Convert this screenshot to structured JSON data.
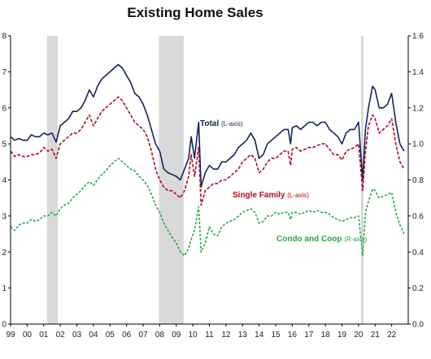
{
  "chart_data": {
    "type": "line",
    "title": "Existing Home Sales",
    "colors": {
      "total": "#14245e",
      "single_family": "#b00b1e",
      "condo": "#23a84a",
      "recession": "#d9d9d9"
    },
    "x_ticks": [
      "99",
      "00",
      "01",
      "02",
      "03",
      "04",
      "05",
      "06",
      "07",
      "08",
      "09",
      "10",
      "11",
      "12",
      "13",
      "14",
      "15",
      "16",
      "17",
      "18",
      "19",
      "20",
      "21",
      "22"
    ],
    "left_axis": {
      "range": [
        0,
        8
      ],
      "tick_labels": [
        "8",
        "7",
        "6",
        "5",
        "4",
        "3",
        "2",
        "1",
        "0"
      ]
    },
    "right_axis": {
      "range": [
        0.0,
        1.6
      ],
      "tick_labels": [
        "1.6",
        "1.4",
        "1.2",
        "1.0",
        "0.8",
        "0.6",
        "0.4",
        "0.2",
        "0.0"
      ]
    },
    "recessions": [
      [
        2001.2,
        2001.85
      ],
      [
        2007.95,
        2009.45
      ],
      [
        2020.15,
        2020.3
      ]
    ],
    "annotations": {
      "total": {
        "name": "Total",
        "axis": "(L-axis)"
      },
      "single_family": {
        "name": "Single Family",
        "axis": "(L-axis)"
      },
      "condo": {
        "name": "Condo and Coop",
        "axis": "(R-axis)"
      }
    },
    "series": [
      {
        "name": "Total",
        "axis": "left",
        "style": "solid",
        "x": [
          1999.0,
          1999.25,
          1999.5,
          1999.75,
          2000.0,
          2000.25,
          2000.5,
          2000.75,
          2001.0,
          2001.25,
          2001.5,
          2001.75,
          2002.0,
          2002.25,
          2002.5,
          2002.75,
          2003.0,
          2003.25,
          2003.5,
          2003.75,
          2004.0,
          2004.25,
          2004.5,
          2004.75,
          2005.0,
          2005.25,
          2005.5,
          2005.75,
          2006.0,
          2006.25,
          2006.5,
          2006.75,
          2007.0,
          2007.25,
          2007.5,
          2007.75,
          2008.0,
          2008.25,
          2008.5,
          2008.75,
          2009.0,
          2009.25,
          2009.5,
          2009.75,
          2009.9,
          2010.1,
          2010.35,
          2010.5,
          2010.75,
          2011.0,
          2011.25,
          2011.5,
          2011.75,
          2012.0,
          2012.25,
          2012.5,
          2012.75,
          2013.0,
          2013.25,
          2013.5,
          2013.75,
          2014.0,
          2014.25,
          2014.5,
          2014.75,
          2015.0,
          2015.25,
          2015.5,
          2015.75,
          2015.9,
          2016.0,
          2016.25,
          2016.5,
          2016.75,
          2017.0,
          2017.25,
          2017.5,
          2017.75,
          2018.0,
          2018.25,
          2018.5,
          2018.75,
          2019.0,
          2019.25,
          2019.5,
          2019.75,
          2020.0,
          2020.25,
          2020.42,
          2020.6,
          2020.85,
          2021.0,
          2021.25,
          2021.5,
          2021.75,
          2022.0,
          2022.25,
          2022.5,
          2022.75
        ],
        "values": [
          5.2,
          5.1,
          5.15,
          5.1,
          5.1,
          5.25,
          5.2,
          5.2,
          5.3,
          5.25,
          5.3,
          5.05,
          5.5,
          5.6,
          5.7,
          5.9,
          5.9,
          6.0,
          6.2,
          6.5,
          6.3,
          6.6,
          6.8,
          6.9,
          7.0,
          7.1,
          7.2,
          7.1,
          6.9,
          6.7,
          6.4,
          6.3,
          6.1,
          5.8,
          5.4,
          5.0,
          4.8,
          4.3,
          4.2,
          4.15,
          4.1,
          4.0,
          4.3,
          4.6,
          5.2,
          4.6,
          5.6,
          3.8,
          4.2,
          4.4,
          4.3,
          4.3,
          4.5,
          4.5,
          4.6,
          4.7,
          4.9,
          5.0,
          5.1,
          5.3,
          5.1,
          4.6,
          4.7,
          5.0,
          5.1,
          5.2,
          5.3,
          5.4,
          5.4,
          5.0,
          5.45,
          5.5,
          5.4,
          5.5,
          5.6,
          5.6,
          5.5,
          5.6,
          5.6,
          5.4,
          5.3,
          5.2,
          5.0,
          5.3,
          5.4,
          5.4,
          5.6,
          4.0,
          5.4,
          6.0,
          6.6,
          6.5,
          6.0,
          6.0,
          6.1,
          6.4,
          5.6,
          5.0,
          4.8
        ]
      },
      {
        "name": "Single Family",
        "axis": "left",
        "style": "dashed",
        "x": [
          1999.0,
          1999.25,
          1999.5,
          1999.75,
          2000.0,
          2000.25,
          2000.5,
          2000.75,
          2001.0,
          2001.25,
          2001.5,
          2001.75,
          2002.0,
          2002.25,
          2002.5,
          2002.75,
          2003.0,
          2003.25,
          2003.5,
          2003.75,
          2004.0,
          2004.25,
          2004.5,
          2004.75,
          2005.0,
          2005.25,
          2005.5,
          2005.75,
          2006.0,
          2006.25,
          2006.5,
          2006.75,
          2007.0,
          2007.25,
          2007.5,
          2007.75,
          2008.0,
          2008.25,
          2008.5,
          2008.75,
          2009.0,
          2009.25,
          2009.5,
          2009.75,
          2009.9,
          2010.1,
          2010.35,
          2010.5,
          2010.75,
          2011.0,
          2011.25,
          2011.5,
          2011.75,
          2012.0,
          2012.25,
          2012.5,
          2012.75,
          2013.0,
          2013.25,
          2013.5,
          2013.75,
          2014.0,
          2014.25,
          2014.5,
          2014.75,
          2015.0,
          2015.25,
          2015.5,
          2015.75,
          2015.9,
          2016.0,
          2016.25,
          2016.5,
          2016.75,
          2017.0,
          2017.25,
          2017.5,
          2017.75,
          2018.0,
          2018.25,
          2018.5,
          2018.75,
          2019.0,
          2019.25,
          2019.5,
          2019.75,
          2020.0,
          2020.25,
          2020.42,
          2020.6,
          2020.85,
          2021.0,
          2021.25,
          2021.5,
          2021.75,
          2022.0,
          2022.25,
          2022.5,
          2022.75
        ],
        "values": [
          4.8,
          4.65,
          4.7,
          4.65,
          4.65,
          4.7,
          4.7,
          4.75,
          4.9,
          4.8,
          4.85,
          4.6,
          5.0,
          5.1,
          5.2,
          5.3,
          5.3,
          5.4,
          5.6,
          5.8,
          5.5,
          5.7,
          5.9,
          6.0,
          6.1,
          6.2,
          6.3,
          6.2,
          6.0,
          5.8,
          5.6,
          5.5,
          5.4,
          5.2,
          4.8,
          4.3,
          4.0,
          3.8,
          3.7,
          3.7,
          3.6,
          3.5,
          3.7,
          4.1,
          4.7,
          4.1,
          4.9,
          3.3,
          3.7,
          3.8,
          3.9,
          3.9,
          4.0,
          4.0,
          4.1,
          4.2,
          4.3,
          4.5,
          4.6,
          4.7,
          4.6,
          4.2,
          4.3,
          4.5,
          4.6,
          4.6,
          4.7,
          4.8,
          4.8,
          4.4,
          4.85,
          4.9,
          4.8,
          4.85,
          4.9,
          4.9,
          4.95,
          5.0,
          5.0,
          4.85,
          4.7,
          4.7,
          4.55,
          4.8,
          4.85,
          4.9,
          5.0,
          3.7,
          4.8,
          5.5,
          5.8,
          5.7,
          5.3,
          5.4,
          5.5,
          5.7,
          5.0,
          4.5,
          4.3
        ]
      },
      {
        "name": "Condo and Coop",
        "axis": "right",
        "style": "dashed",
        "x": [
          1999.0,
          1999.25,
          1999.5,
          1999.75,
          2000.0,
          2000.25,
          2000.5,
          2000.75,
          2001.0,
          2001.25,
          2001.5,
          2001.75,
          2002.0,
          2002.25,
          2002.5,
          2002.75,
          2003.0,
          2003.25,
          2003.5,
          2003.75,
          2004.0,
          2004.25,
          2004.5,
          2004.75,
          2005.0,
          2005.25,
          2005.5,
          2005.75,
          2006.0,
          2006.25,
          2006.5,
          2006.75,
          2007.0,
          2007.25,
          2007.5,
          2007.75,
          2008.0,
          2008.25,
          2008.5,
          2008.75,
          2009.0,
          2009.25,
          2009.5,
          2009.75,
          2009.9,
          2010.1,
          2010.35,
          2010.5,
          2010.75,
          2011.0,
          2011.25,
          2011.5,
          2011.75,
          2012.0,
          2012.25,
          2012.5,
          2012.75,
          2013.0,
          2013.25,
          2013.5,
          2013.75,
          2014.0,
          2014.25,
          2014.5,
          2014.75,
          2015.0,
          2015.25,
          2015.5,
          2015.75,
          2015.9,
          2016.0,
          2016.25,
          2016.5,
          2016.75,
          2017.0,
          2017.25,
          2017.5,
          2017.75,
          2018.0,
          2018.25,
          2018.5,
          2018.75,
          2019.0,
          2019.25,
          2019.5,
          2019.75,
          2020.0,
          2020.25,
          2020.42,
          2020.6,
          2020.85,
          2021.0,
          2021.25,
          2021.5,
          2021.75,
          2022.0,
          2022.25,
          2022.5,
          2022.75
        ],
        "values": [
          0.54,
          0.52,
          0.55,
          0.56,
          0.56,
          0.58,
          0.57,
          0.58,
          0.6,
          0.6,
          0.62,
          0.6,
          0.64,
          0.66,
          0.67,
          0.7,
          0.72,
          0.74,
          0.77,
          0.79,
          0.77,
          0.8,
          0.83,
          0.85,
          0.88,
          0.9,
          0.92,
          0.9,
          0.88,
          0.86,
          0.85,
          0.82,
          0.8,
          0.77,
          0.72,
          0.66,
          0.62,
          0.56,
          0.52,
          0.48,
          0.45,
          0.4,
          0.38,
          0.42,
          0.47,
          0.52,
          0.65,
          0.4,
          0.45,
          0.54,
          0.5,
          0.49,
          0.54,
          0.56,
          0.57,
          0.58,
          0.6,
          0.62,
          0.63,
          0.64,
          0.62,
          0.56,
          0.57,
          0.6,
          0.6,
          0.62,
          0.61,
          0.62,
          0.62,
          0.58,
          0.62,
          0.62,
          0.61,
          0.62,
          0.63,
          0.62,
          0.63,
          0.62,
          0.62,
          0.61,
          0.59,
          0.58,
          0.57,
          0.58,
          0.59,
          0.59,
          0.6,
          0.38,
          0.62,
          0.68,
          0.75,
          0.74,
          0.7,
          0.71,
          0.72,
          0.73,
          0.62,
          0.55,
          0.5
        ]
      }
    ]
  }
}
